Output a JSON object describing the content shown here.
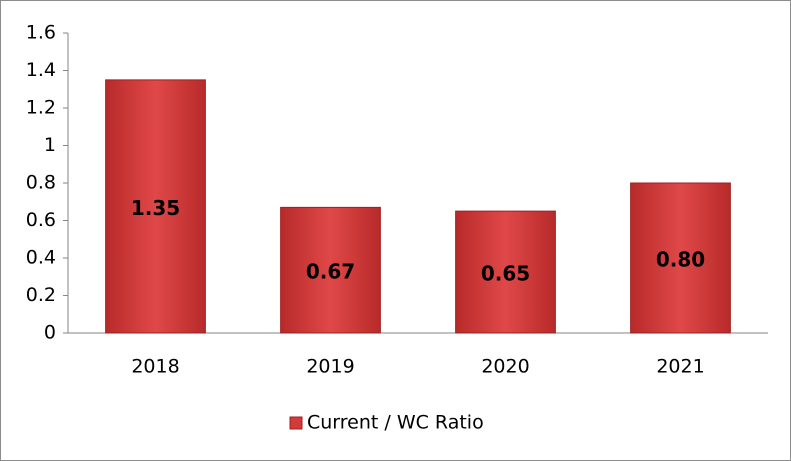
{
  "chart_data": {
    "type": "bar",
    "categories": [
      "2018",
      "2019",
      "2020",
      "2021"
    ],
    "series": [
      {
        "name": "Current / WC Ratio",
        "color": "#d43a3a",
        "values": [
          1.35,
          0.67,
          0.65,
          0.8
        ],
        "value_labels": [
          "1.35",
          "0.67",
          "0.65",
          "0.80"
        ]
      }
    ],
    "ylim": [
      0,
      1.6
    ],
    "yticks": [
      0,
      0.2,
      0.4,
      0.6,
      0.8,
      1,
      1.2,
      1.4,
      1.6
    ],
    "grid": false,
    "legend": "bottom"
  }
}
